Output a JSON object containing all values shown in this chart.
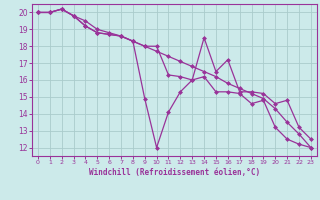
{
  "x": [
    0,
    1,
    2,
    3,
    4,
    5,
    6,
    7,
    8,
    9,
    10,
    11,
    12,
    13,
    14,
    15,
    16,
    17,
    18,
    19,
    20,
    21,
    22,
    23
  ],
  "line1": [
    20.0,
    20.0,
    20.2,
    19.8,
    19.5,
    19.0,
    18.8,
    18.6,
    18.3,
    18.0,
    17.7,
    17.4,
    17.1,
    16.8,
    16.5,
    16.2,
    15.8,
    15.5,
    15.2,
    14.9,
    14.3,
    13.5,
    12.8,
    12.0
  ],
  "line2": [
    20.0,
    20.0,
    20.2,
    19.8,
    19.2,
    18.8,
    18.7,
    18.6,
    18.3,
    18.0,
    18.0,
    16.3,
    16.2,
    16.0,
    18.5,
    16.5,
    17.2,
    15.3,
    15.3,
    15.2,
    14.6,
    14.8,
    13.2,
    12.5
  ],
  "line3": [
    20.0,
    20.0,
    20.2,
    19.8,
    19.2,
    18.8,
    18.7,
    18.6,
    18.3,
    14.9,
    12.0,
    14.1,
    15.3,
    16.0,
    16.2,
    15.3,
    15.3,
    15.2,
    14.6,
    14.8,
    13.2,
    12.5,
    12.2,
    12.0
  ],
  "line_color": "#993399",
  "bg_color": "#cceaea",
  "grid_color": "#aacccc",
  "tick_color": "#993399",
  "xlabel": "Windchill (Refroidissement éolien,°C)",
  "xlim": [
    -0.5,
    23.5
  ],
  "ylim": [
    11.5,
    20.5
  ],
  "yticks": [
    12,
    13,
    14,
    15,
    16,
    17,
    18,
    19,
    20
  ],
  "xticks": [
    0,
    1,
    2,
    3,
    4,
    5,
    6,
    7,
    8,
    9,
    10,
    11,
    12,
    13,
    14,
    15,
    16,
    17,
    18,
    19,
    20,
    21,
    22,
    23
  ],
  "marker_size": 2.5,
  "line_width": 0.9
}
